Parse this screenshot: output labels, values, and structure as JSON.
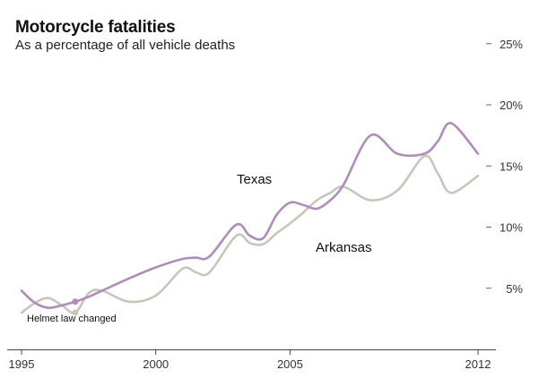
{
  "chart_data": {
    "type": "line",
    "title": "Motorcycle fatalities",
    "subtitle": "As a percentage of all vehicle deaths",
    "xlabel": "",
    "ylabel": "",
    "x_ticks": [
      1995,
      2000,
      2005,
      2012
    ],
    "y_ticks": [
      5,
      10,
      15,
      20,
      25
    ],
    "y_tick_labels": [
      "5%",
      "10%",
      "15%",
      "20%",
      "25%"
    ],
    "xlim": [
      1995,
      2012
    ],
    "ylim": [
      0,
      26
    ],
    "series": [
      {
        "name": "Texas",
        "color": "#b08db8",
        "x": [
          1995,
          1995.5,
          1996,
          1996.5,
          1997,
          1997.5,
          1998,
          1999,
          2000,
          2001,
          2001.5,
          2002,
          2003,
          2003.5,
          2004,
          2004.5,
          2005,
          2005.5,
          2006,
          2006.5,
          2007,
          2008,
          2009,
          2010,
          2010.5,
          2011,
          2012
        ],
        "y": [
          4.8,
          3.8,
          3.4,
          3.6,
          3.9,
          4.3,
          4.8,
          5.8,
          6.7,
          7.4,
          7.5,
          7.6,
          10.2,
          9.3,
          9.1,
          11.0,
          12.0,
          11.8,
          11.5,
          12.2,
          13.5,
          17.5,
          16.0,
          16.0,
          17.0,
          18.5,
          16.0
        ]
      },
      {
        "name": "Arkansas",
        "color": "#c8c6bc",
        "x": [
          1995,
          1995.5,
          1996,
          1996.5,
          1997,
          1997.5,
          1998,
          1999,
          2000,
          2001,
          2001.5,
          2002,
          2003,
          2003.5,
          2004,
          2004.5,
          2005,
          2005.5,
          2006,
          2006.5,
          2007,
          2008,
          2009,
          2010,
          2010.5,
          2011,
          2012
        ],
        "y": [
          3.0,
          3.8,
          4.2,
          3.6,
          3.0,
          4.6,
          4.8,
          3.9,
          4.4,
          6.6,
          6.3,
          6.3,
          9.3,
          8.7,
          8.6,
          9.5,
          10.3,
          11.2,
          12.2,
          12.8,
          13.3,
          12.2,
          13.0,
          15.8,
          14.4,
          12.8,
          14.2
        ]
      }
    ],
    "annotations": [
      {
        "text": "Helmet law changed",
        "x": 1997
      }
    ],
    "grid": false,
    "legend": "labels on chart"
  }
}
